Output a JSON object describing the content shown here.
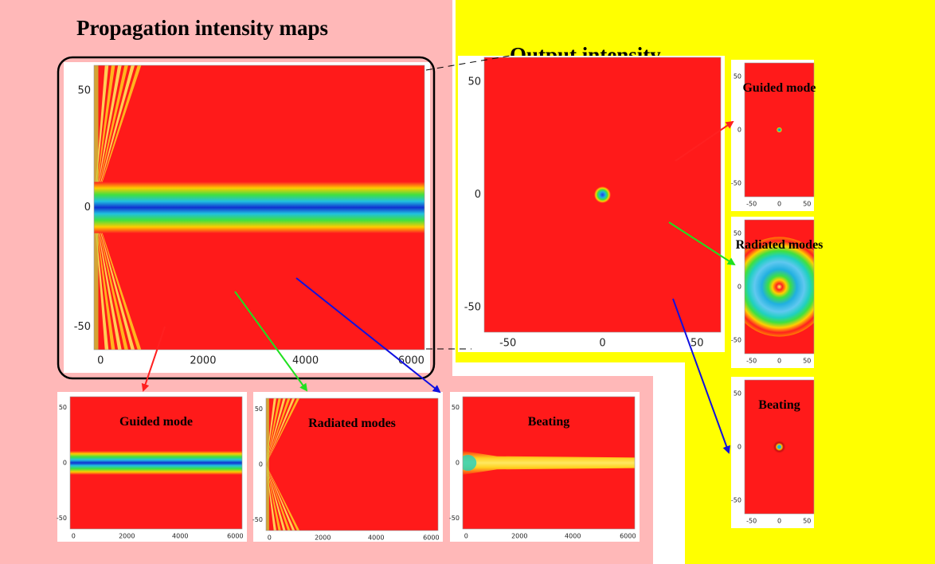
{
  "left_title": "Propagation intensity maps",
  "right_title": "Output intensity",
  "propagation_map": {
    "yticks": [
      50,
      0,
      -50
    ],
    "xticks": [
      0,
      2000,
      4000,
      6000
    ]
  },
  "output_map": {
    "yticks": [
      50,
      0,
      -50
    ],
    "xticks": [
      -50,
      0,
      50
    ]
  },
  "propagation_panels": [
    {
      "label": "Guided mode",
      "yticks": [
        50,
        0,
        -50
      ],
      "xticks": [
        0,
        2000,
        4000,
        6000
      ]
    },
    {
      "label": "Radiated modes",
      "yticks": [
        50,
        0,
        -50
      ],
      "xticks": [
        0,
        2000,
        4000,
        6000
      ]
    },
    {
      "label": "Beating",
      "yticks": [
        50,
        0,
        -50
      ],
      "xticks": [
        0,
        2000,
        4000,
        6000
      ]
    }
  ],
  "output_panels": [
    {
      "label": "Guided mode",
      "yticks": [
        50,
        0,
        -50
      ],
      "xticks": [
        -50,
        0,
        50
      ]
    },
    {
      "label": "Radiated modes",
      "yticks": [
        50,
        0,
        -50
      ],
      "xticks": [
        -50,
        0,
        50
      ]
    },
    {
      "label": "Beating",
      "yticks": [
        50,
        0,
        -50
      ],
      "xticks": [
        -50,
        0,
        50
      ]
    }
  ]
}
